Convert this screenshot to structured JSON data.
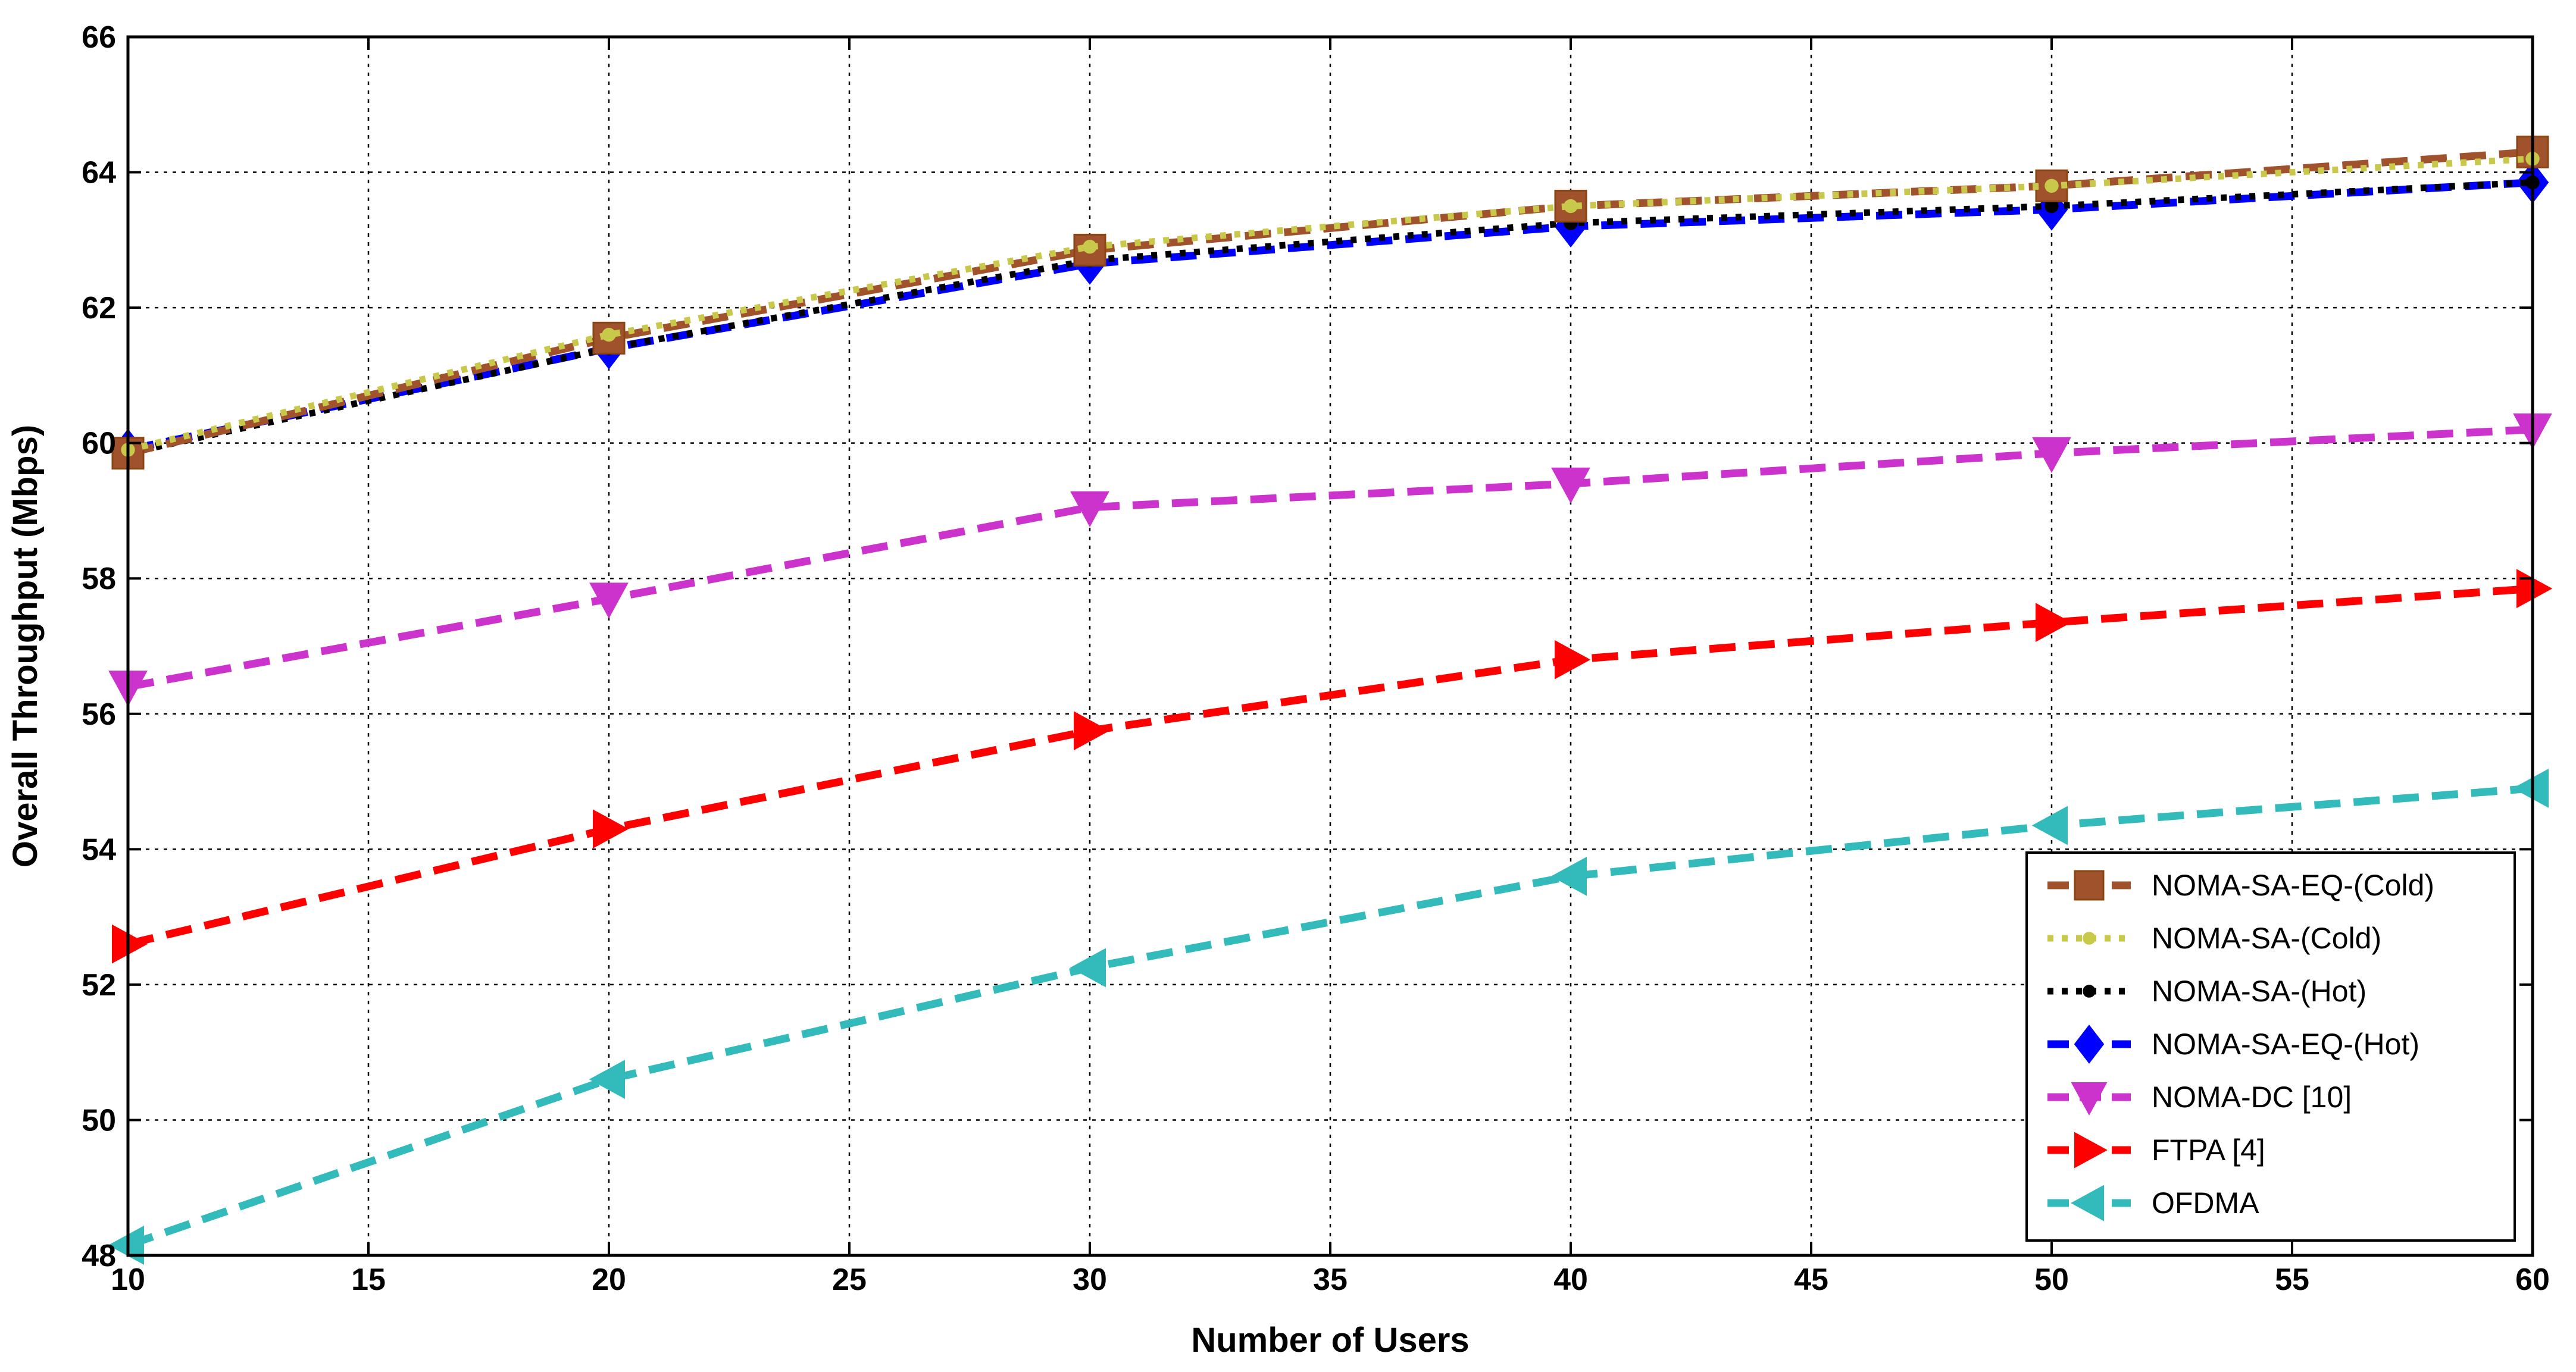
{
  "chart_data": {
    "type": "line",
    "title": "",
    "xlabel": "Number of Users",
    "ylabel": "Overall Throughput (Mbps)",
    "xlim": [
      10,
      60
    ],
    "ylim": [
      48,
      66
    ],
    "xticks": [
      10,
      15,
      20,
      25,
      30,
      35,
      40,
      45,
      50,
      55,
      60
    ],
    "yticks": [
      48,
      50,
      52,
      54,
      56,
      58,
      60,
      62,
      64,
      66
    ],
    "grid": true,
    "legend_position": "bottom-right",
    "x": [
      10,
      20,
      30,
      40,
      50,
      60
    ],
    "series": [
      {
        "name": "NOMA-SA-EQ-(Cold)",
        "values": [
          59.85,
          61.55,
          62.85,
          63.5,
          63.8,
          64.3
        ],
        "color": "#a0522d",
        "linestyle": "dashed",
        "marker": "square"
      },
      {
        "name": "NOMA-SA-(Cold)",
        "values": [
          59.9,
          61.6,
          62.9,
          63.5,
          63.8,
          64.2
        ],
        "color": "#c8c84a",
        "linestyle": "dotted",
        "marker": "dot"
      },
      {
        "name": "NOMA-SA-(Hot)",
        "values": [
          59.85,
          61.4,
          62.7,
          63.25,
          63.5,
          63.85
        ],
        "color": "#000000",
        "linestyle": "dotted",
        "marker": "dot"
      },
      {
        "name": "NOMA-SA-EQ-(Hot)",
        "values": [
          59.9,
          61.4,
          62.65,
          63.2,
          63.45,
          63.85
        ],
        "color": "#0000ff",
        "linestyle": "dashed",
        "marker": "diamond"
      },
      {
        "name": "NOMA-DC [10]",
        "values": [
          56.4,
          57.7,
          59.05,
          59.4,
          59.85,
          60.2
        ],
        "color": "#cc33cc",
        "linestyle": "dashed",
        "marker": "triangle-down"
      },
      {
        "name": "FTPA [4]",
        "values": [
          52.6,
          54.3,
          55.75,
          56.8,
          57.35,
          57.85
        ],
        "color": "#ff0000",
        "linestyle": "dashed",
        "marker": "triangle-right"
      },
      {
        "name": "OFDMA",
        "values": [
          48.15,
          50.6,
          52.25,
          53.6,
          54.35,
          54.9
        ],
        "color": "#33bbbb",
        "linestyle": "dashed",
        "marker": "triangle-left"
      }
    ]
  }
}
